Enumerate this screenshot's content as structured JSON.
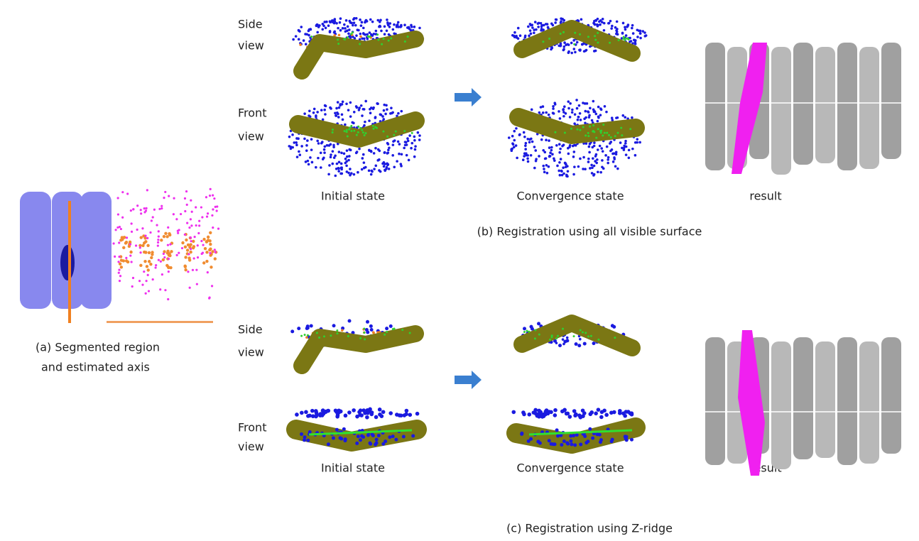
{
  "panel_a": {
    "caption": [
      "(a) Segmented region",
      "and  estimated axis"
    ]
  },
  "panel_b": {
    "row_labels": [
      [
        "Side",
        "view"
      ],
      [
        "Front",
        "view"
      ]
    ],
    "column_labels": [
      "Initial state",
      "Convergence state",
      "result"
    ],
    "caption": "(b) Registration using all visible surface"
  },
  "panel_c": {
    "row_labels": [
      [
        "Side",
        "view"
      ],
      [
        "Front",
        "view"
      ]
    ],
    "column_labels": [
      "Initial state",
      "Convergence state",
      "result"
    ],
    "caption": "(c) Registration using Z-ridge"
  }
}
